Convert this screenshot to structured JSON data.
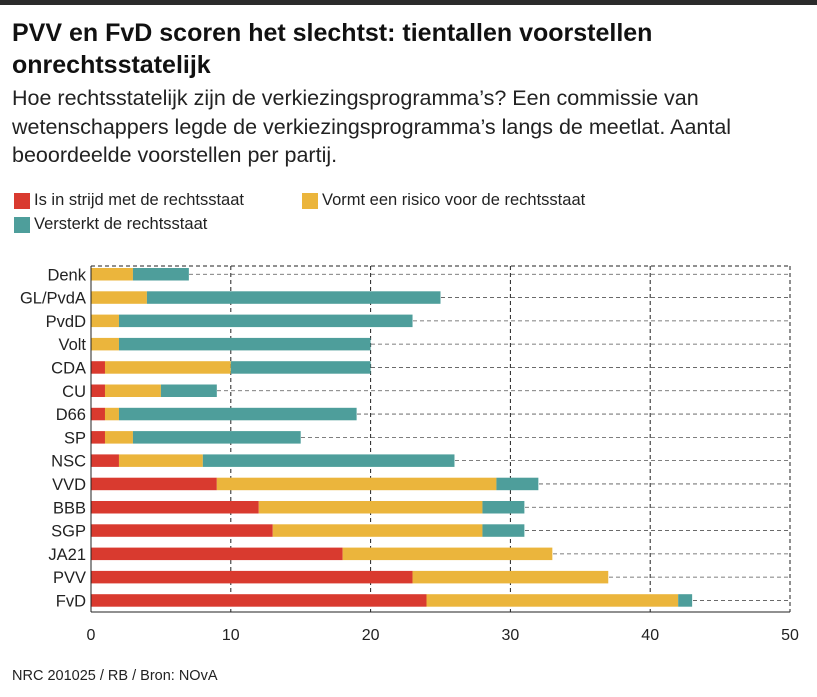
{
  "title": "PVV en FvD scoren het slechtst: tientallen voorstellen onrechtsstatelijk",
  "subtitle": "Hoe rechtsstatelijk zijn de verkiezingsprogramma’s? Een commissie van wetenschappers legde de verkiezingsprogramma’s langs de meetlat. Aantal beoordeelde voorstellen per partij.",
  "source": "NRC 201025 / RB / Bron: NOvA",
  "colors": {
    "strijd": "#d93a2f",
    "risico": "#ebb53c",
    "versterkt": "#4e9e9b",
    "grid": "#222222"
  },
  "chart_data": {
    "type": "bar",
    "orientation": "horizontal",
    "stacked": true,
    "categories": [
      "Denk",
      "GL/PvdA",
      "PvdD",
      "Volt",
      "CDA",
      "CU",
      "D66",
      "SP",
      "NSC",
      "VVD",
      "BBB",
      "SGP",
      "JA21",
      "PVV",
      "FvD"
    ],
    "series": [
      {
        "name": "Is in strijd met de rechtsstaat",
        "color": "#d93a2f",
        "values": [
          0,
          0,
          0,
          0,
          1,
          1,
          1,
          1,
          2,
          9,
          12,
          13,
          18,
          23,
          24
        ]
      },
      {
        "name": "Vormt een risico voor de rechtsstaat",
        "color": "#ebb53c",
        "values": [
          3,
          4,
          2,
          2,
          9,
          4,
          1,
          2,
          6,
          20,
          16,
          15,
          15,
          14,
          18
        ]
      },
      {
        "name": "Versterkt de rechtsstaat",
        "color": "#4e9e9b",
        "values": [
          4,
          21,
          21,
          18,
          10,
          4,
          17,
          12,
          18,
          3,
          3,
          3,
          0,
          0,
          1
        ]
      }
    ],
    "x_ticks": [
      "0",
      "10",
      "20",
      "30",
      "40",
      "50"
    ],
    "xlim": [
      0,
      50
    ],
    "grid": "vertical dashed",
    "legend_position": "top"
  }
}
